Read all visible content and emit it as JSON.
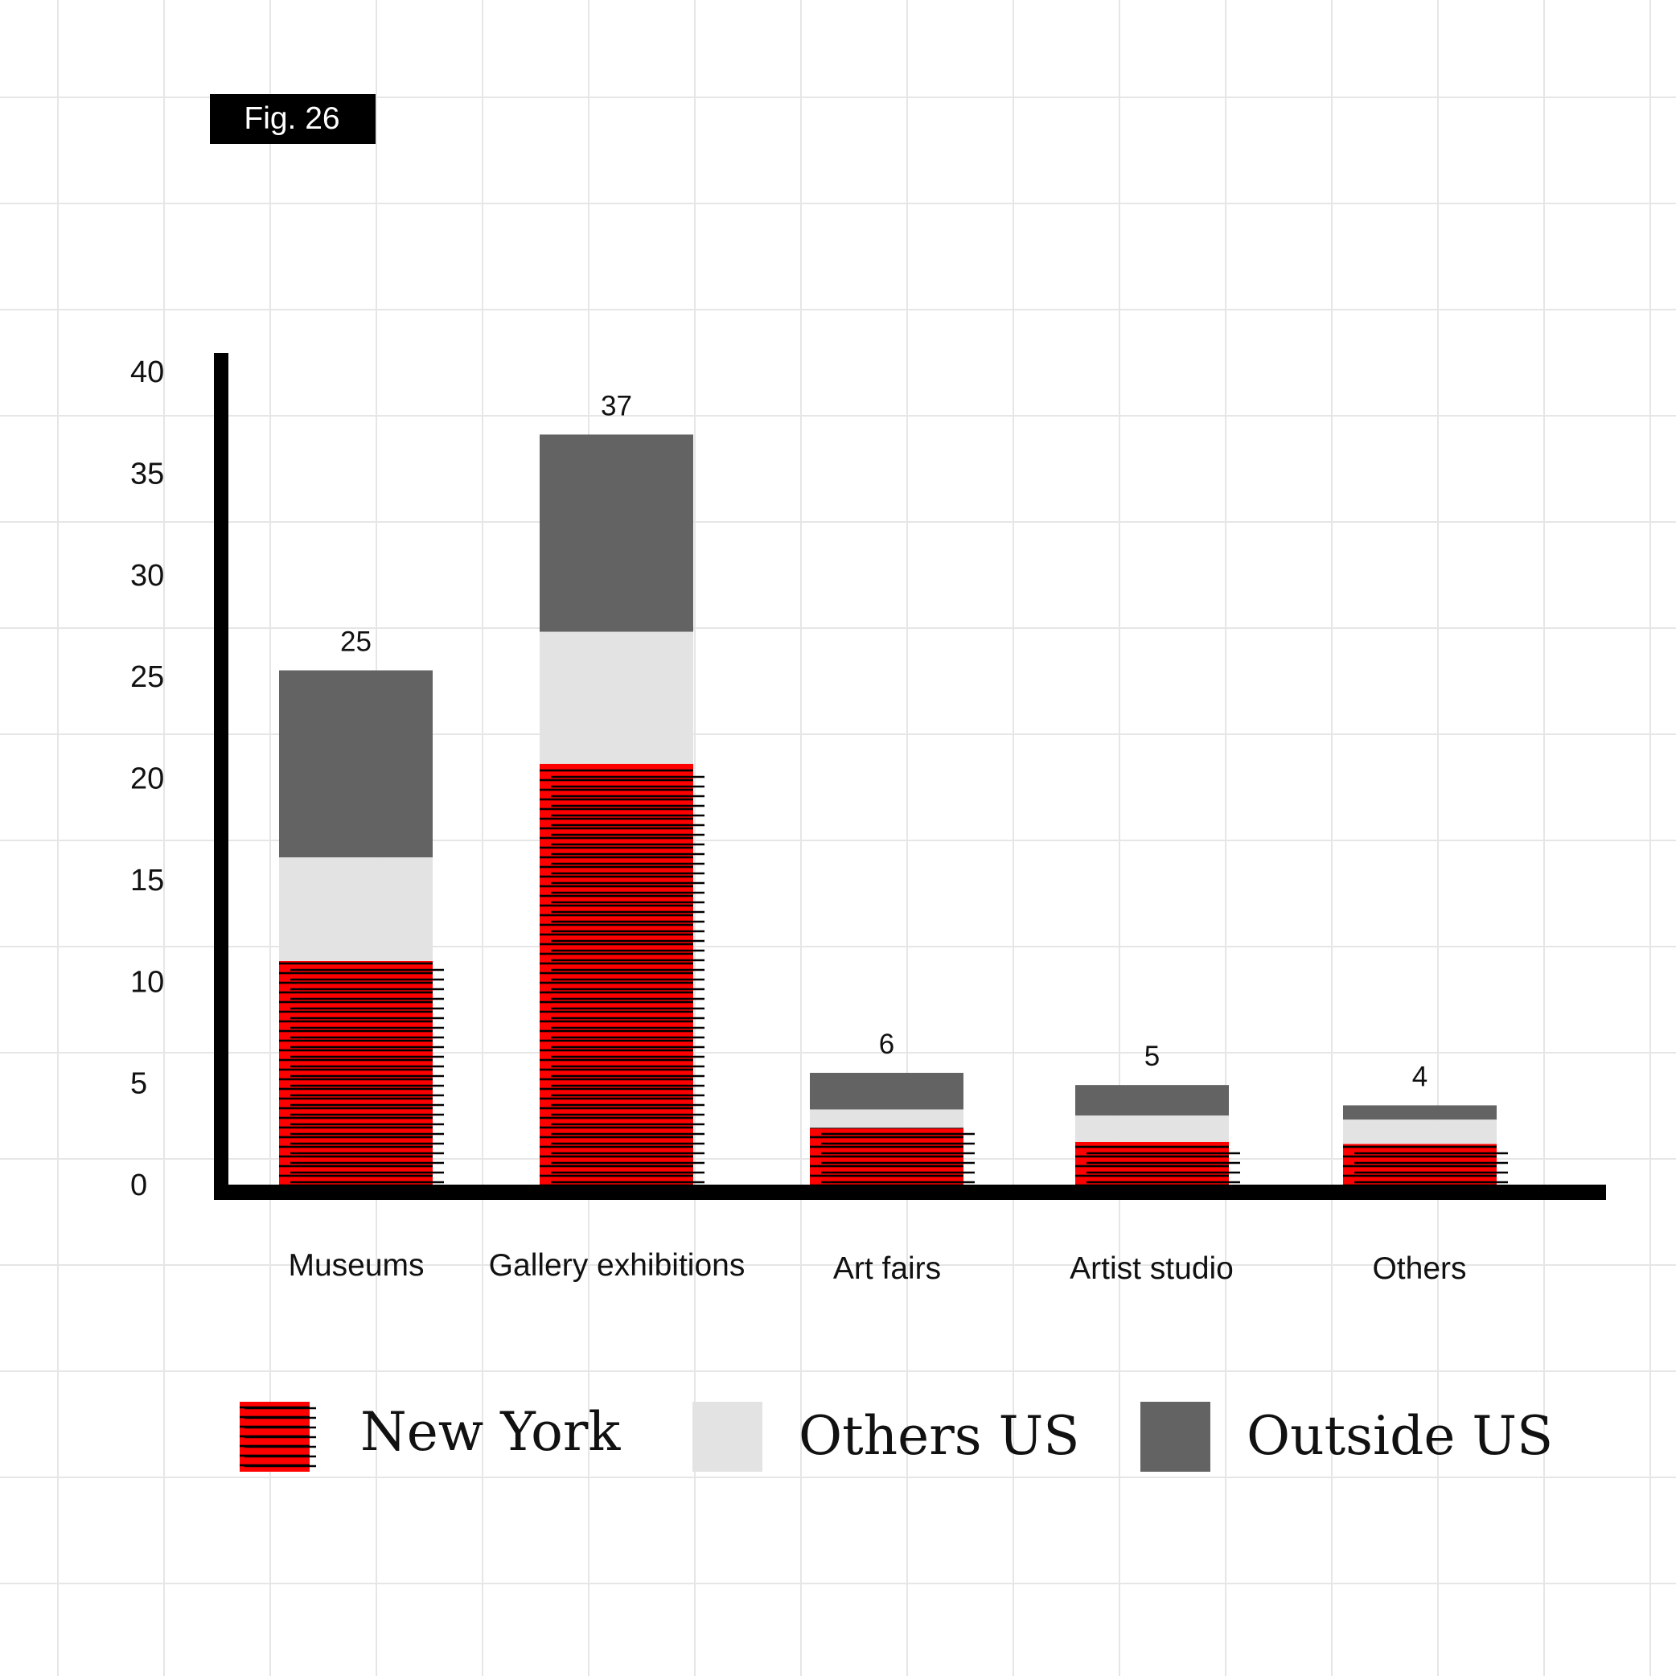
{
  "figure_label": "Fig. 26",
  "colors": {
    "background": "#ffffff",
    "grid": "#e6e6e6",
    "axis": "#000000",
    "new_york": "#ff0000",
    "new_york_hatch": "#000000",
    "others_us": "#e3e3e3",
    "outside_us": "#636363",
    "badge_bg": "#000000",
    "badge_text": "#ffffff"
  },
  "chart_data": {
    "type": "bar",
    "stacked": true,
    "categories": [
      "Museums",
      "Gallery exhibitions",
      "Art fairs",
      "Artist studio",
      "Others"
    ],
    "series": [
      {
        "name": "New York",
        "key": "new_york",
        "pattern": "horizontal-hatch",
        "values": [
          11,
          20.7,
          2.8,
          2.1,
          2.0
        ]
      },
      {
        "name": "Others US",
        "key": "others_us",
        "values": [
          5.1,
          6.5,
          0.9,
          1.3,
          1.2
        ]
      },
      {
        "name": "Outside US",
        "key": "outside_us",
        "values": [
          9.2,
          9.7,
          1.8,
          1.5,
          0.7
        ]
      }
    ],
    "totals": [
      "25",
      "37",
      "6",
      "5",
      "4"
    ],
    "ylim": [
      0,
      40
    ],
    "yticks": [
      "0",
      "5",
      "10",
      "15",
      "20",
      "25",
      "30",
      "35",
      "40"
    ],
    "grid": true,
    "legend_position": "bottom"
  }
}
